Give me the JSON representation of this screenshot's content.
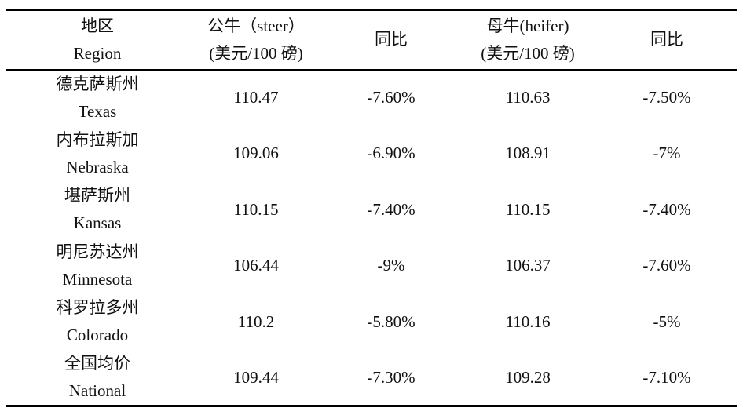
{
  "table": {
    "header": [
      [
        "地区",
        "Region"
      ],
      [
        "公牛（steer）",
        "(美元/100 磅)"
      ],
      [
        "同比"
      ],
      [
        "母牛(heifer)",
        "(美元/100 磅)"
      ],
      [
        "同比"
      ]
    ],
    "rows": [
      [
        [
          "德克萨斯州",
          "Texas"
        ],
        "110.47",
        "-7.60%",
        "110.63",
        "-7.50%"
      ],
      [
        [
          "内布拉斯加",
          "Nebraska"
        ],
        "109.06",
        "-6.90%",
        "108.91",
        "-7%"
      ],
      [
        [
          "堪萨斯州",
          "Kansas"
        ],
        "110.15",
        "-7.40%",
        "110.15",
        "-7.40%"
      ],
      [
        [
          "明尼苏达州",
          "Minnesota"
        ],
        "106.44",
        "-9%",
        "106.37",
        "-7.60%"
      ],
      [
        [
          "科罗拉多州",
          "Colorado"
        ],
        "110.2",
        "-5.80%",
        "110.16",
        "-5%"
      ],
      [
        [
          "全国均价",
          "National"
        ],
        "109.44",
        "-7.30%",
        "109.28",
        "-7.10%"
      ]
    ]
  }
}
